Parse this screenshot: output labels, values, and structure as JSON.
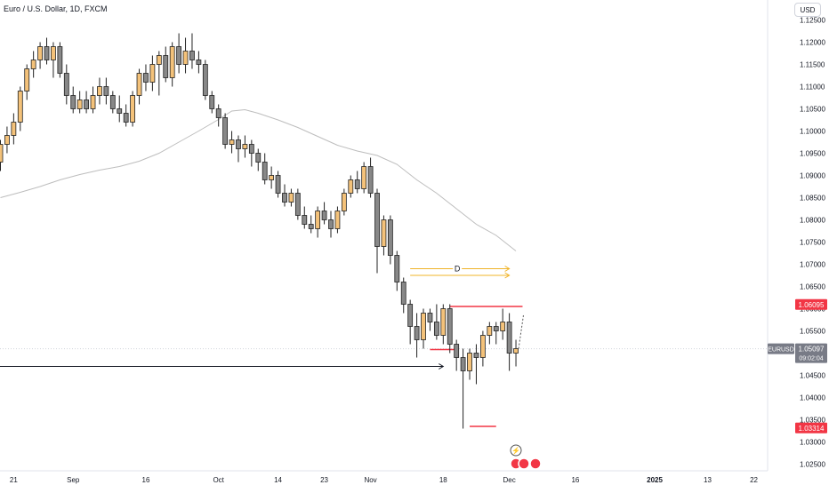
{
  "header": {
    "title": "Euro / U.S. Dollar, 1D, FXCM",
    "currency": "USD"
  },
  "chart_data": {
    "type": "candlestick",
    "title": "Euro / U.S. Dollar, 1D, FXCM",
    "ylim": [
      1.0235,
      1.1295
    ],
    "grid": false,
    "y_ticks": [
      "1.12500",
      "1.12000",
      "1.11500",
      "1.11000",
      "1.10500",
      "1.10000",
      "1.09500",
      "1.09000",
      "1.08500",
      "1.08000",
      "1.07500",
      "1.07000",
      "1.06500",
      "1.06000",
      "1.05500",
      "1.05000",
      "1.04500",
      "1.04000",
      "1.03500",
      "1.03000",
      "1.02500"
    ],
    "x_ticks": [
      {
        "label": "21",
        "i": 2
      },
      {
        "label": "Sep",
        "i": 11
      },
      {
        "label": "16",
        "i": 22
      },
      {
        "label": "Oct",
        "i": 33
      },
      {
        "label": "14",
        "i": 42
      },
      {
        "label": "23",
        "i": 49
      },
      {
        "label": "Nov",
        "i": 56
      },
      {
        "label": "18",
        "i": 67
      },
      {
        "label": "Dec",
        "i": 77
      },
      {
        "label": "16",
        "i": 87
      },
      {
        "label": "2025",
        "i": 99
      },
      {
        "label": "13",
        "i": 107
      },
      {
        "label": "22",
        "i": 114
      }
    ],
    "colors": {
      "up": "#f4c27a",
      "down": "#888888",
      "outline": "#222222",
      "ma": "#bdbdbd",
      "yellow": "#f0b429",
      "red": "#f23645",
      "current": "#d1d4dc"
    },
    "candles": [
      [
        1.093,
        1.098,
        1.091,
        1.097
      ],
      [
        1.097,
        1.101,
        1.095,
        1.099
      ],
      [
        1.099,
        1.104,
        1.097,
        1.102
      ],
      [
        1.102,
        1.11,
        1.1,
        1.109
      ],
      [
        1.109,
        1.115,
        1.107,
        1.114
      ],
      [
        1.114,
        1.118,
        1.112,
        1.116
      ],
      [
        1.116,
        1.12,
        1.114,
        1.119
      ],
      [
        1.119,
        1.121,
        1.115,
        1.116
      ],
      [
        1.116,
        1.12,
        1.112,
        1.119
      ],
      [
        1.119,
        1.12,
        1.112,
        1.113
      ],
      [
        1.113,
        1.115,
        1.106,
        1.108
      ],
      [
        1.108,
        1.11,
        1.104,
        1.105
      ],
      [
        1.105,
        1.109,
        1.104,
        1.107
      ],
      [
        1.107,
        1.109,
        1.104,
        1.105
      ],
      [
        1.105,
        1.11,
        1.104,
        1.108
      ],
      [
        1.108,
        1.112,
        1.106,
        1.11
      ],
      [
        1.11,
        1.112,
        1.106,
        1.108
      ],
      [
        1.108,
        1.109,
        1.104,
        1.105
      ],
      [
        1.105,
        1.108,
        1.102,
        1.104
      ],
      [
        1.104,
        1.106,
        1.101,
        1.102
      ],
      [
        1.102,
        1.109,
        1.101,
        1.108
      ],
      [
        1.108,
        1.114,
        1.106,
        1.113
      ],
      [
        1.113,
        1.115,
        1.109,
        1.111
      ],
      [
        1.111,
        1.117,
        1.109,
        1.115
      ],
      [
        1.115,
        1.118,
        1.108,
        1.117
      ],
      [
        1.117,
        1.119,
        1.111,
        1.112
      ],
      [
        1.112,
        1.12,
        1.11,
        1.119
      ],
      [
        1.119,
        1.122,
        1.113,
        1.115
      ],
      [
        1.115,
        1.121,
        1.113,
        1.118
      ],
      [
        1.118,
        1.122,
        1.114,
        1.116
      ],
      [
        1.116,
        1.118,
        1.113,
        1.115
      ],
      [
        1.115,
        1.116,
        1.107,
        1.108
      ],
      [
        1.108,
        1.109,
        1.104,
        1.105
      ],
      [
        1.105,
        1.106,
        1.101,
        1.103
      ],
      [
        1.103,
        1.104,
        1.096,
        1.097
      ],
      [
        1.097,
        1.1,
        1.095,
        1.098
      ],
      [
        1.098,
        1.099,
        1.093,
        1.096
      ],
      [
        1.096,
        1.099,
        1.094,
        1.097
      ],
      [
        1.097,
        1.098,
        1.092,
        1.095
      ],
      [
        1.095,
        1.096,
        1.091,
        1.093
      ],
      [
        1.093,
        1.095,
        1.088,
        1.089
      ],
      [
        1.089,
        1.092,
        1.087,
        1.09
      ],
      [
        1.09,
        1.091,
        1.085,
        1.086
      ],
      [
        1.086,
        1.088,
        1.083,
        1.084
      ],
      [
        1.084,
        1.087,
        1.083,
        1.086
      ],
      [
        1.086,
        1.087,
        1.08,
        1.081
      ],
      [
        1.081,
        1.083,
        1.078,
        1.079
      ],
      [
        1.079,
        1.081,
        1.077,
        1.078
      ],
      [
        1.078,
        1.083,
        1.076,
        1.082
      ],
      [
        1.082,
        1.084,
        1.079,
        1.08
      ],
      [
        1.08,
        1.082,
        1.076,
        1.078
      ],
      [
        1.078,
        1.083,
        1.077,
        1.082
      ],
      [
        1.082,
        1.087,
        1.081,
        1.086
      ],
      [
        1.086,
        1.09,
        1.085,
        1.089
      ],
      [
        1.089,
        1.091,
        1.086,
        1.087
      ],
      [
        1.087,
        1.093,
        1.086,
        1.092
      ],
      [
        1.092,
        1.094,
        1.085,
        1.086
      ],
      [
        1.086,
        1.087,
        1.068,
        1.074
      ],
      [
        1.074,
        1.081,
        1.072,
        1.08
      ],
      [
        1.08,
        1.081,
        1.07,
        1.072
      ],
      [
        1.072,
        1.073,
        1.064,
        1.066
      ],
      [
        1.066,
        1.067,
        1.059,
        1.061
      ],
      [
        1.061,
        1.062,
        1.052,
        1.056
      ],
      [
        1.056,
        1.059,
        1.049,
        1.053
      ],
      [
        1.053,
        1.06,
        1.051,
        1.059
      ],
      [
        1.059,
        1.06,
        1.055,
        1.057
      ],
      [
        1.057,
        1.061,
        1.053,
        1.054
      ],
      [
        1.054,
        1.061,
        1.052,
        1.06
      ],
      [
        1.06,
        1.061,
        1.05,
        1.052
      ],
      [
        1.052,
        1.053,
        1.046,
        1.049
      ],
      [
        1.049,
        1.051,
        1.033,
        1.046
      ],
      [
        1.046,
        1.051,
        1.044,
        1.05
      ],
      [
        1.05,
        1.052,
        1.043,
        1.049
      ],
      [
        1.049,
        1.055,
        1.047,
        1.054
      ],
      [
        1.054,
        1.057,
        1.052,
        1.056
      ],
      [
        1.056,
        1.057,
        1.052,
        1.055
      ],
      [
        1.055,
        1.06,
        1.053,
        1.057
      ],
      [
        1.057,
        1.059,
        1.046,
        1.05
      ],
      [
        1.05,
        1.053,
        1.047,
        1.051
      ]
    ],
    "moving_average": [
      [
        0,
        1.085
      ],
      [
        3,
        1.0862
      ],
      [
        6,
        1.0875
      ],
      [
        9,
        1.089
      ],
      [
        12,
        1.0902
      ],
      [
        15,
        1.0912
      ],
      [
        18,
        1.092
      ],
      [
        21,
        1.0932
      ],
      [
        24,
        1.095
      ],
      [
        27,
        1.0975
      ],
      [
        30,
        1.1
      ],
      [
        33,
        1.1026
      ],
      [
        35,
        1.1045
      ],
      [
        37,
        1.1048
      ],
      [
        39,
        1.104
      ],
      [
        42,
        1.1025
      ],
      [
        45,
        1.1008
      ],
      [
        48,
        1.0988
      ],
      [
        51,
        1.0968
      ],
      [
        54,
        1.0955
      ],
      [
        57,
        1.0945
      ],
      [
        60,
        1.0925
      ],
      [
        63,
        1.089
      ],
      [
        66,
        1.086
      ],
      [
        69,
        1.0825
      ],
      [
        72,
        1.079
      ],
      [
        75,
        1.0765
      ],
      [
        78,
        1.073
      ]
    ],
    "levels": {
      "yellow_upper": 1.069,
      "yellow_lower": 1.0675,
      "yellow_label": "D",
      "black_support": 1.047,
      "red_top": 1.0605,
      "red_mid": 1.0508,
      "red_low": 1.0335
    },
    "price_labels": [
      {
        "value": 1.06095,
        "text": "1.06095",
        "color": "#f23645"
      },
      {
        "value": 1.03314,
        "text": "1.03314",
        "color": "#f23645"
      }
    ],
    "current": {
      "value": 1.05097,
      "symbol": "EURUSD",
      "price": "1.05097",
      "countdown": "09:02:04"
    }
  }
}
